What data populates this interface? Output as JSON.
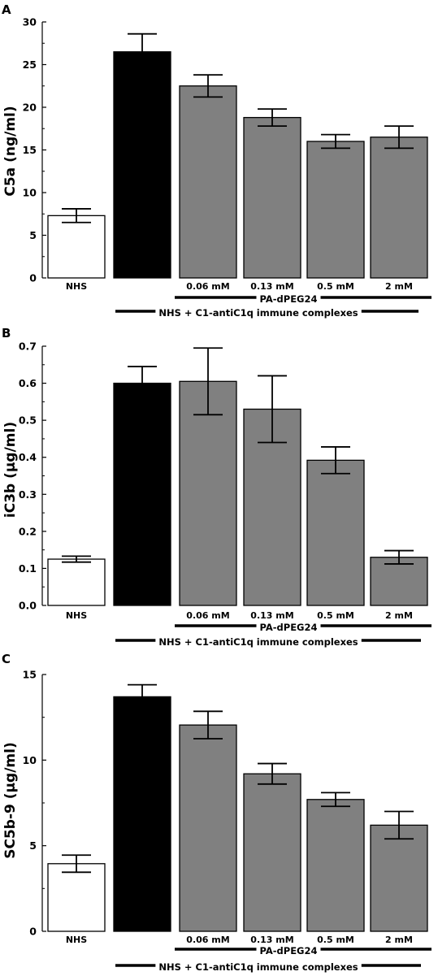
{
  "chart_data": [
    {
      "type": "bar",
      "panel": "A",
      "ylabel": "C5a (ng/ml)",
      "ylim": [
        0,
        30
      ],
      "yticks": [
        0,
        5,
        10,
        15,
        20,
        25,
        30
      ],
      "ytick_labels": [
        "0",
        "5",
        "10",
        "15",
        "20",
        "25",
        "30"
      ],
      "categories": [
        "NHS",
        "",
        "0.06 mM",
        "0.13 mM",
        "0.5 mM",
        "2 mM"
      ],
      "values": [
        7.3,
        26.5,
        22.5,
        18.8,
        16.0,
        16.5
      ],
      "errors": [
        0.8,
        2.1,
        1.3,
        1.0,
        0.8,
        1.3
      ],
      "bar_colors": [
        "#ffffff",
        "#000000",
        "#808080",
        "#808080",
        "#808080",
        "#808080"
      ],
      "bracket_peg": "PA-dPEG24",
      "bracket_ic": "NHS + C1-antiC1q immune complexes"
    },
    {
      "type": "bar",
      "panel": "B",
      "ylabel": "iC3b (μg/ml)",
      "ylim": [
        0,
        0.7
      ],
      "yticks": [
        0,
        0.1,
        0.2,
        0.3,
        0.4,
        0.5,
        0.6,
        0.7
      ],
      "ytick_labels": [
        "0.0",
        "0.1",
        "0.2",
        "0.3",
        "0.4",
        "0.5",
        "0.6",
        "0.7"
      ],
      "categories": [
        "NHS",
        "",
        "0.06 mM",
        "0.13 mM",
        "0.5 mM",
        "2 mM"
      ],
      "values": [
        0.125,
        0.6,
        0.605,
        0.53,
        0.392,
        0.13
      ],
      "errors": [
        0.008,
        0.045,
        0.09,
        0.09,
        0.036,
        0.018
      ],
      "bar_colors": [
        "#ffffff",
        "#000000",
        "#808080",
        "#808080",
        "#808080",
        "#808080"
      ],
      "bracket_peg": "PA-dPEG24",
      "bracket_ic": "NHS + C1-antiC1q immune complexes"
    },
    {
      "type": "bar",
      "panel": "C",
      "ylabel": "SC5b-9 (μg/ml)",
      "ylim": [
        0,
        15
      ],
      "yticks": [
        0,
        5,
        10,
        15
      ],
      "ytick_labels": [
        "0",
        "5",
        "10",
        "15"
      ],
      "categories": [
        "NHS",
        "",
        "0.06 mM",
        "0.13 mM",
        "0.5 mM",
        "2 mM"
      ],
      "values": [
        3.95,
        13.7,
        12.05,
        9.2,
        7.7,
        6.2
      ],
      "errors": [
        0.5,
        0.7,
        0.8,
        0.6,
        0.4,
        0.8
      ],
      "bar_colors": [
        "#ffffff",
        "#000000",
        "#808080",
        "#808080",
        "#808080",
        "#808080"
      ],
      "bracket_peg": "PA-dPEG24",
      "bracket_ic": "NHS + C1-antiC1q immune complexes"
    }
  ]
}
